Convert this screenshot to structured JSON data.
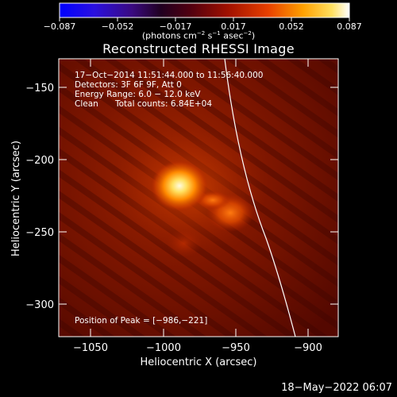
{
  "colorbar": {
    "tick_labels": [
      "−0.087",
      "−0.052",
      "−0.017",
      "0.017",
      "0.052",
      "0.087"
    ],
    "unit_label_parts": [
      "(photons cm",
      "−2",
      " s",
      "−1",
      " asec",
      "−2",
      ")"
    ],
    "min": -0.087,
    "max": 0.087
  },
  "title": "Reconstructed RHESSI Image",
  "info": {
    "line1": "17−Oct−2014 11:51:44.000 to 11:56:40.000",
    "line2": "Detectors: 3F 6F 9F, Att 0",
    "line3": "Energy Range: 6.0 − 12.0 keV",
    "line4_left": "Clean",
    "line4_right": "Total counts: 6.84E+04"
  },
  "peak_text": "Position of Peak = [−986,−221]",
  "axes": {
    "xlabel": "Heliocentric X (arcsec)",
    "ylabel": "Heliocentric Y (arcsec)",
    "xticks": [
      "−1050",
      "−1000",
      "−950",
      "−900"
    ],
    "yticks": [
      "−150",
      "−200",
      "−250",
      "−300"
    ]
  },
  "timestamp": "18−May−2022 06:07",
  "colors": {
    "background": "#000000",
    "limb_line": "#ffffff",
    "image_dark": "#6e0d00",
    "image_hot": "#fff4c0"
  }
}
